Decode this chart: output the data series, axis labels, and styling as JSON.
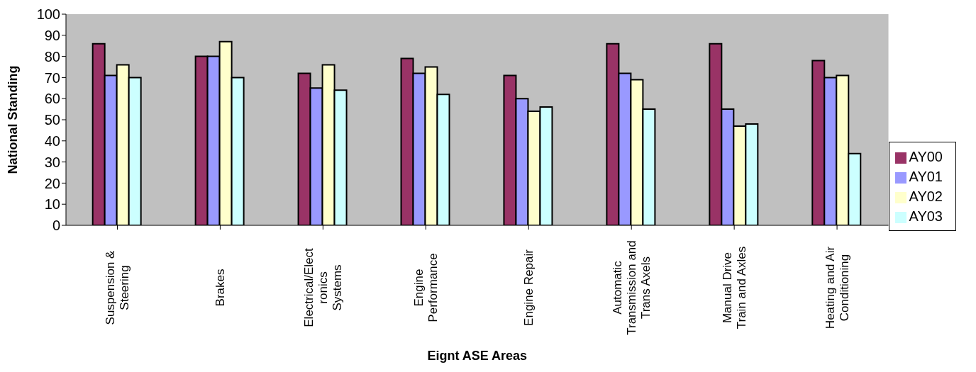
{
  "chart_data": {
    "type": "bar",
    "xlabel": "Eignt ASE Areas",
    "ylabel": "National Standing",
    "categories": [
      "Suspension & Steering",
      "Brakes",
      "Electrical/Electronics Systems",
      "Engine Performance",
      "Engine Repair",
      "Automatic Transmission and Trans Axels",
      "Manual Drive Train and Axles",
      "Heating and Air Conditioning"
    ],
    "series": [
      {
        "name": "AY00",
        "color": "#993366",
        "values": [
          86,
          80,
          72,
          79,
          71,
          86,
          86,
          78
        ]
      },
      {
        "name": "AY01",
        "color": "#9999ff",
        "values": [
          71,
          80,
          65,
          72,
          60,
          72,
          55,
          70
        ]
      },
      {
        "name": "AY02",
        "color": "#ffffcc",
        "values": [
          76,
          87,
          76,
          75,
          54,
          69,
          47,
          71
        ]
      },
      {
        "name": "AY03",
        "color": "#ccffff",
        "values": [
          70,
          70,
          64,
          62,
          56,
          55,
          48,
          34
        ]
      }
    ],
    "ylim": [
      0,
      100
    ],
    "yticks": [
      0,
      10,
      20,
      30,
      40,
      50,
      60,
      70,
      80,
      90,
      100
    ],
    "grid": false,
    "legend": "right"
  }
}
